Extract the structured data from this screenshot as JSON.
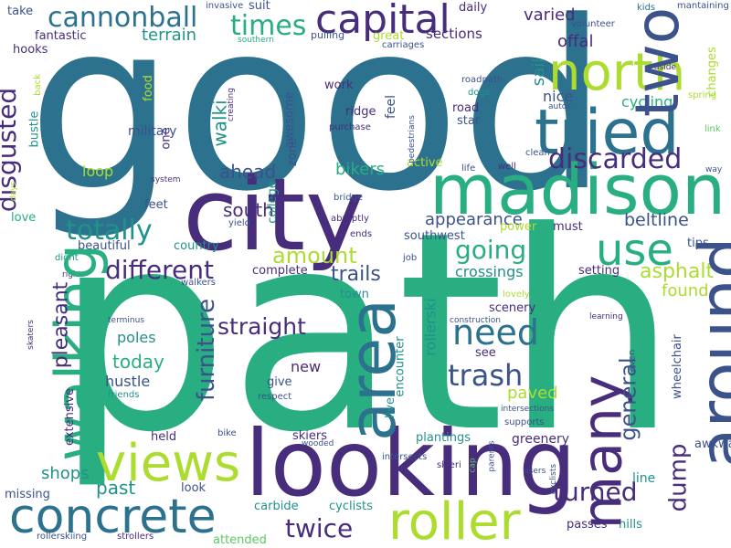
{
  "palette": {
    "dark_purple": "#472d7b",
    "indigo": "#3b528b",
    "steel_blue": "#2c728e",
    "teal": "#21918c",
    "green": "#28ae80",
    "light_green": "#5ec962",
    "lime": "#addc30",
    "yellow": "#fde725"
  },
  "words": [
    "good",
    "path",
    "city",
    "looking",
    "madison",
    "tried",
    "north",
    "walking",
    "area",
    "around",
    "two",
    "capital",
    "concrete",
    "roller",
    "views",
    "many",
    "use",
    "need",
    "different",
    "totally",
    "disgusted",
    "cannonball",
    "trash",
    "discarded",
    "going",
    "furniture",
    "straight",
    "amount",
    "turned",
    "twice",
    "trails",
    "beltline",
    "dump",
    "general",
    "times",
    "asphalt",
    "found",
    "ahead",
    "south",
    "pleasant",
    "today",
    "paved",
    "terrain",
    "walki",
    "past",
    "crossings",
    "appearance",
    "bikers",
    "offal",
    "varied",
    "sections",
    "great",
    "daily",
    "nice",
    "cycling",
    "sail",
    "fantastic",
    "take",
    "hooks",
    "suit",
    "awesome",
    "pulling",
    "carriages",
    "kids",
    "volunteer",
    "mantaining",
    "changes",
    "spring",
    "aside",
    "link",
    "way",
    "military",
    "food",
    "bustle",
    "loop",
    "one",
    "college",
    "work",
    "ridge",
    "road",
    "star",
    "feel",
    "purchase",
    "active",
    "life",
    "well",
    "clean",
    "roadpath",
    "dogs",
    "autos",
    "pedestrians",
    "zone",
    "creating",
    "invasive",
    "southern",
    "back",
    "system",
    "days",
    "bridge",
    "abruptly",
    "yield",
    "ends",
    "love",
    "feet",
    "country",
    "beautiful",
    "didnt",
    "right",
    "power",
    "southwest",
    "must",
    "tips",
    "setting",
    "complete",
    "job",
    "walkers",
    "town",
    "lovely",
    "scenery",
    "construction",
    "learning",
    "terminus",
    "poles",
    "see",
    "wheelchair",
    "hustle",
    "new",
    "give",
    "respect",
    "friends",
    "encounter",
    "rollerski",
    "live",
    "intersections",
    "supports",
    "skiers",
    "held",
    "bike",
    "even",
    "wooded",
    "intersects",
    "plantings",
    "parents",
    "extensive",
    "greenery",
    "awkward",
    "line",
    "shops",
    "look",
    "skieri",
    "users",
    "cap",
    "missing",
    "carbide",
    "cyclists",
    "passes",
    "hills",
    "rollerskiing",
    "strollers",
    "attended",
    "skaters",
    "set"
  ]
}
